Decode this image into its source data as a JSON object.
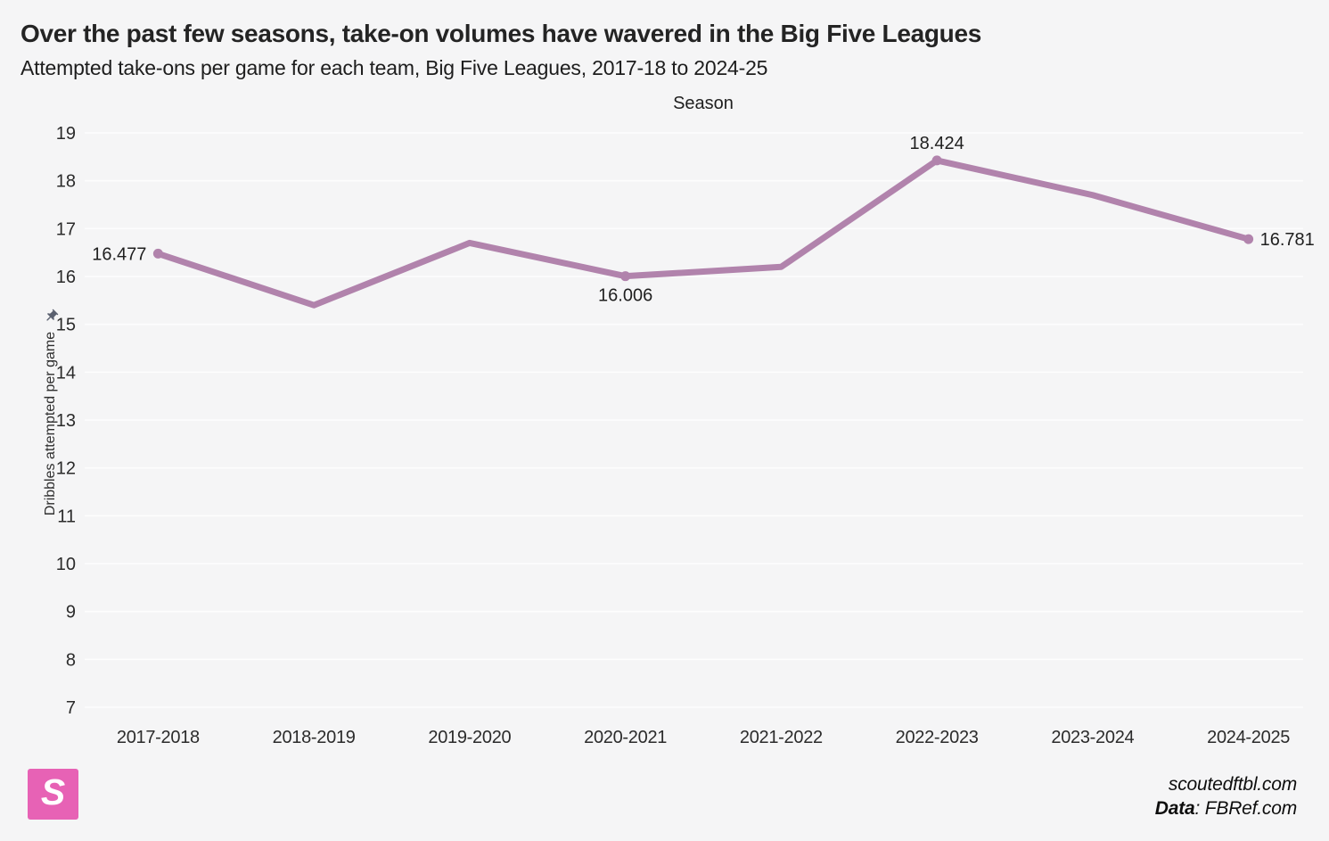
{
  "header": {
    "title": "Over the past few seasons, take-on volumes have wavered in the Big Five Leagues",
    "subtitle": "Attempted take-ons per game for each team, Big Five Leagues, 2017-18 to 2024-25"
  },
  "chart_data": {
    "type": "line",
    "xlabel": "Season",
    "ylabel": "Dribbles attempted per game",
    "categories": [
      "2017-2018",
      "2018-2019",
      "2019-2020",
      "2020-2021",
      "2021-2022",
      "2022-2023",
      "2023-2024",
      "2024-2025"
    ],
    "series": [
      {
        "name": "Attempted take-ons per game",
        "values": [
          16.477,
          15.4,
          16.7,
          16.006,
          16.2,
          18.424,
          17.7,
          16.781
        ]
      }
    ],
    "point_labels": [
      {
        "index": 0,
        "text": "16.477",
        "position": "left"
      },
      {
        "index": 3,
        "text": "16.006",
        "position": "below"
      },
      {
        "index": 5,
        "text": "18.424",
        "position": "above"
      },
      {
        "index": 7,
        "text": "16.781",
        "position": "right"
      }
    ],
    "ylim": [
      7,
      19
    ],
    "yticks": [
      7,
      8,
      9,
      10,
      11,
      12,
      13,
      14,
      15,
      16,
      17,
      18,
      19
    ],
    "grid": true,
    "legend": false,
    "line_color": "#b183ac"
  },
  "footer": {
    "brand_letter": "S",
    "brand_color": "#e762b5",
    "site": "scoutedftbl.com",
    "data_label": "Data",
    "data_source": ": FBRef.com"
  },
  "colors": {
    "background": "#f5f5f6",
    "grid": "#fdfdfd",
    "tick_text": "#2b2b2b",
    "data_label_text": "#1f1f1f",
    "pin": "#5b6170"
  }
}
